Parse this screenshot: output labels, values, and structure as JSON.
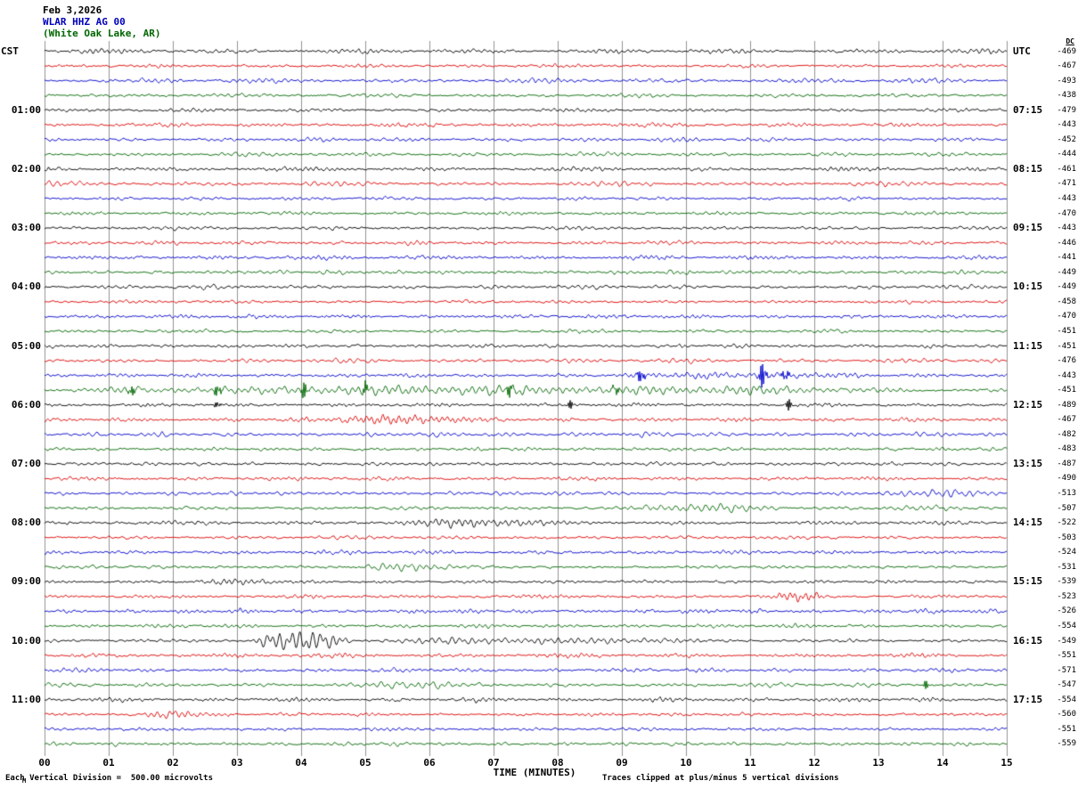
{
  "header": {
    "date": "Feb 3,2026",
    "station": "WLAR HHZ AG 00",
    "location": "(White Oak Lake, AR)"
  },
  "axes": {
    "left_header": "CST",
    "right_header": "UTC",
    "dc_header": "DC",
    "x_label": "TIME (MINUTES)"
  },
  "footer": {
    "left": "Each Vertical Division =  500.00 microvolts",
    "right": "Traces clipped at plus/minus 5 vertical divisions",
    "corner_mark": "M"
  },
  "colors": {
    "background": "#ffffff",
    "grid": "#777777",
    "trace_cycle": [
      "#000000",
      "#dd0000",
      "#0000cc",
      "#006600"
    ]
  },
  "chart_data": {
    "type": "line",
    "subtype": "helicorder-seismogram",
    "title": "WLAR HHZ AG 00 (White Oak Lake, AR) Feb 3,2026",
    "station": "WLAR",
    "channel": "HHZ",
    "network": "AG",
    "location_code": "00",
    "site": "White Oak Lake, AR",
    "date": "Feb 3,2026",
    "timezone_left": "CST",
    "timezone_right": "UTC",
    "rows": 48,
    "traces_per_hour": 4,
    "minutes_per_row": 15,
    "x_range_minutes": [
      0,
      15
    ],
    "x_ticks": [
      "00",
      "01",
      "02",
      "03",
      "04",
      "05",
      "06",
      "07",
      "08",
      "09",
      "10",
      "11",
      "12",
      "13",
      "14",
      "15"
    ],
    "trace_color_cycle_names": [
      "black",
      "red",
      "blue",
      "green"
    ],
    "left_time_labels": [
      "01:00",
      "02:00",
      "03:00",
      "04:00",
      "05:00",
      "06:00",
      "07:00",
      "08:00",
      "09:00",
      "10:00",
      "11:00"
    ],
    "right_time_labels": [
      "07:15",
      "08:15",
      "09:15",
      "10:15",
      "11:15",
      "12:15",
      "13:15",
      "14:15",
      "15:15",
      "16:15",
      "17:15"
    ],
    "dc_values": [
      "-469",
      "-467",
      "-493",
      "-438",
      "-479",
      "-443",
      "-452",
      "-444",
      "-461",
      "-471",
      "-443",
      "-470",
      "-443",
      "-446",
      "-441",
      "-449",
      "-449",
      "-458",
      "-470",
      "-451",
      "-451",
      "-476",
      "-443",
      "-451",
      "-489",
      "-467",
      "-482",
      "-483",
      "-487",
      "-490",
      "-513",
      "-507",
      "-522",
      "-503",
      "-524",
      "-531",
      "-539",
      "-523",
      "-526",
      "-554",
      "-549",
      "-551",
      "-571",
      "-547",
      "-554",
      "-560",
      "-551",
      "-559"
    ],
    "scale_note": "Each Vertical Division =  500.00 microvolts",
    "clip_note": "Traces clipped at plus/minus 5 vertical divisions",
    "events": [
      {
        "row": 22,
        "start": 9.0,
        "end": 12.8,
        "amp": 1.5
      },
      {
        "row": 23,
        "start": 0.6,
        "end": 13.6,
        "amp": 2.2
      },
      {
        "row": 25,
        "start": 4.3,
        "end": 6.7,
        "amp": 2.8
      },
      {
        "row": 30,
        "start": 13.2,
        "end": 15.0,
        "amp": 2.2
      },
      {
        "row": 31,
        "start": 9.2,
        "end": 11.6,
        "amp": 2.4
      },
      {
        "row": 31,
        "start": 12.9,
        "end": 14.4,
        "amp": 1.3
      },
      {
        "row": 32,
        "start": 5.4,
        "end": 7.9,
        "amp": 2.2
      },
      {
        "row": 35,
        "start": 4.9,
        "end": 6.4,
        "amp": 2.2
      },
      {
        "row": 36,
        "start": 2.4,
        "end": 3.8,
        "amp": 1.4
      },
      {
        "row": 37,
        "start": 11.3,
        "end": 12.2,
        "amp": 2.2
      },
      {
        "row": 40,
        "start": 3.2,
        "end": 4.8,
        "amp": 6.5
      },
      {
        "row": 40,
        "start": 4.8,
        "end": 10.2,
        "amp": 1.6
      },
      {
        "row": 43,
        "start": 5.1,
        "end": 6.4,
        "amp": 2.0
      },
      {
        "row": 45,
        "start": 1.5,
        "end": 2.5,
        "amp": 2.6
      }
    ],
    "spikes": [
      {
        "row": 22,
        "at": 9.3,
        "amp": 9
      },
      {
        "row": 22,
        "at": 11.2,
        "amp": 16
      },
      {
        "row": 22,
        "at": 11.55,
        "amp": 7
      },
      {
        "row": 23,
        "at": 1.35,
        "amp": 6
      },
      {
        "row": 23,
        "at": 2.7,
        "amp": 8
      },
      {
        "row": 23,
        "at": 4.05,
        "amp": 9
      },
      {
        "row": 23,
        "at": 5.0,
        "amp": 6
      },
      {
        "row": 23,
        "at": 7.25,
        "amp": 7
      },
      {
        "row": 23,
        "at": 8.9,
        "amp": 5
      },
      {
        "row": 24,
        "at": 2.7,
        "amp": 4
      },
      {
        "row": 24,
        "at": 8.2,
        "amp": 5
      },
      {
        "row": 24,
        "at": 11.6,
        "amp": 6
      },
      {
        "row": 43,
        "at": 13.75,
        "amp": 5
      }
    ]
  }
}
